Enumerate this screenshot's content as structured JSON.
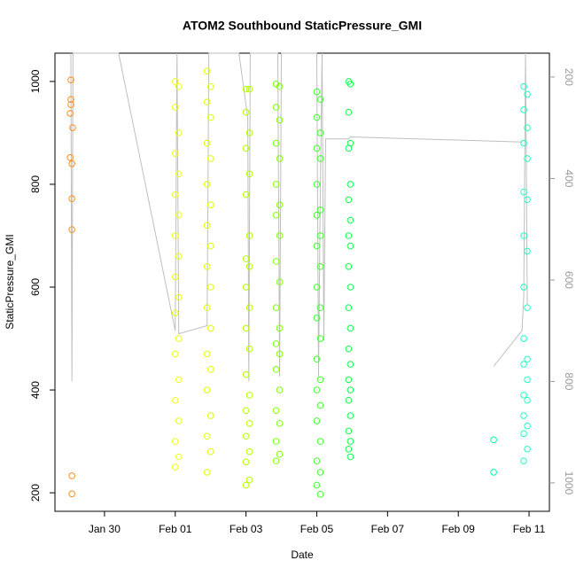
{
  "chart_data": {
    "type": "scatter",
    "title": "ATOM2 Southbound StaticPressure_GMI",
    "x_label": "Date",
    "y_label": "StaticPressure_GMI",
    "xlim": [
      28.6,
      42.575
    ],
    "ylim": [
      164,
      1055
    ],
    "y2lim": [
      1056,
      153
    ],
    "xticks": [
      {
        "value": 30,
        "label": "Jan 30"
      },
      {
        "value": 32,
        "label": "Feb 01"
      },
      {
        "value": 34,
        "label": "Feb 03"
      },
      {
        "value": 36,
        "label": "Feb 05"
      },
      {
        "value": 38,
        "label": "Feb 07"
      },
      {
        "value": 40,
        "label": "Feb 09"
      },
      {
        "value": 42,
        "label": "Feb 11"
      }
    ],
    "yticks": [
      200,
      400,
      600,
      800,
      1000
    ],
    "y2ticks": [
      200,
      400,
      600,
      800,
      1000
    ],
    "series": [
      {
        "color": "#bebebe",
        "type": "line",
        "axis": "y2",
        "x": [
          29.05,
          29.08,
          29.11,
          30.4,
          32.0,
          32.05,
          32.1,
          32.9,
          32.95,
          33.8,
          34.05,
          34.08,
          34.12,
          34.9,
          34.95,
          35.0,
          36.0,
          36.05,
          36.1,
          36.15,
          36.2,
          36.25,
          36.9,
          36.95,
          41.8,
          41.0,
          41.0,
          41.8,
          41.85,
          41.9,
          41.95
        ],
        "values": [
          153,
          800,
          153,
          153,
          700,
          153,
          706,
          690,
          153,
          153,
          280,
          800,
          153,
          153,
          790,
          153,
          153,
          790,
          420,
          153,
          720,
          322,
          322,
          318,
          328,
          null,
          770,
          700,
          633,
          153,
          650
        ]
      },
      {
        "color": "#ff8c1a",
        "x": [
          29.05,
          29.05,
          29.05,
          29.03,
          29.1,
          29.03,
          29.08,
          29.08,
          29.08,
          29.08,
          29.08
        ],
        "values": [
          1003,
          965,
          955,
          938,
          910,
          852,
          840,
          772,
          712,
          233,
          198
        ]
      },
      {
        "color": "#eeff1a",
        "x": [
          32.0,
          32.1,
          32.0,
          32.1,
          32.0,
          32.1,
          32.0,
          32.1,
          32.0,
          32.1,
          32.0,
          32.1,
          32.0,
          32.1,
          32.0,
          32.1,
          32.0,
          32.1,
          32.0,
          32.1,
          32.0
        ],
        "values": [
          1000,
          990,
          950,
          900,
          860,
          820,
          780,
          740,
          700,
          660,
          620,
          580,
          550,
          500,
          470,
          420,
          380,
          340,
          300,
          270,
          250
        ]
      },
      {
        "color": "#e0ff10",
        "x": [
          32.9,
          33.0,
          32.9,
          33.0,
          32.9,
          33.0,
          32.9,
          33.0,
          32.9,
          33.0,
          32.9,
          33.0,
          32.9,
          33.0,
          32.9,
          33.0,
          32.9,
          33.0,
          32.9,
          33.0,
          32.9
        ],
        "values": [
          1020,
          990,
          960,
          930,
          880,
          850,
          800,
          760,
          720,
          680,
          640,
          600,
          560,
          520,
          470,
          440,
          400,
          350,
          310,
          280,
          240
        ]
      },
      {
        "color": "#b0ff00",
        "x": [
          34.0,
          34.1,
          34.0,
          34.1,
          34.0,
          34.1,
          34.0,
          34.1,
          34.0,
          34.1,
          34.0,
          34.1,
          34.0,
          34.1,
          34.0,
          34.1,
          34.0,
          34.1,
          34.0,
          34.1,
          34.0,
          34.1,
          34.0
        ],
        "values": [
          985,
          985,
          940,
          900,
          870,
          820,
          780,
          700,
          655,
          640,
          600,
          560,
          520,
          480,
          430,
          390,
          360,
          335,
          310,
          280,
          260,
          225,
          215
        ]
      },
      {
        "color": "#80ff10",
        "x": [
          34.85,
          34.95,
          34.85,
          34.95,
          34.85,
          34.95,
          34.85,
          34.95,
          34.85,
          34.95,
          34.85,
          34.95,
          34.85,
          34.95,
          34.85,
          34.95,
          34.85,
          34.95,
          34.85,
          34.95,
          34.85,
          34.95,
          34.85
        ],
        "values": [
          995,
          990,
          950,
          925,
          880,
          850,
          800,
          760,
          740,
          700,
          650,
          610,
          560,
          520,
          490,
          470,
          440,
          400,
          360,
          335,
          300,
          275,
          262
        ]
      },
      {
        "color": "#40ff30",
        "x": [
          36.0,
          36.1,
          36.0,
          36.1,
          36.0,
          36.1,
          36.0,
          36.1,
          36.0,
          36.1,
          36.0,
          36.1,
          36.0,
          36.1,
          36.0,
          36.1,
          36.0,
          36.1,
          36.0,
          36.1,
          36.0,
          36.1,
          36.0,
          36.1,
          36.0,
          36.1
        ],
        "values": [
          980,
          965,
          930,
          900,
          870,
          850,
          800,
          750,
          740,
          700,
          680,
          640,
          600,
          560,
          540,
          500,
          460,
          420,
          400,
          370,
          340,
          300,
          262,
          240,
          215,
          197
        ]
      },
      {
        "color": "#10ff50",
        "x": [
          36.9,
          36.95,
          36.9,
          36.95,
          36.9,
          36.95,
          36.9,
          36.95,
          36.9,
          36.95,
          36.9,
          36.95,
          36.9,
          36.95,
          36.9,
          36.95,
          36.9,
          36.95,
          36.9,
          36.95,
          36.9,
          36.95,
          36.9,
          36.95
        ],
        "values": [
          1000,
          995,
          940,
          880,
          870,
          800,
          770,
          730,
          700,
          680,
          640,
          600,
          560,
          520,
          480,
          450,
          420,
          400,
          380,
          350,
          320,
          300,
          285,
          270
        ]
      },
      {
        "color": "#00ff99",
        "x": [
          41.0,
          41.0
        ],
        "values": [
          303,
          240
        ]
      },
      {
        "color": "#20ffc0",
        "x": [
          41.85,
          41.95,
          41.85,
          41.95,
          41.85,
          41.95,
          41.85,
          41.95,
          41.85,
          41.95,
          41.85,
          41.95,
          41.85,
          41.95,
          41.85,
          41.95,
          41.85,
          41.95,
          41.85,
          41.95,
          41.85,
          41.95,
          41.85
        ],
        "values": [
          990,
          975,
          945,
          910,
          880,
          850,
          785,
          770,
          700,
          670,
          600,
          560,
          500,
          460,
          450,
          420,
          390,
          380,
          350,
          330,
          315,
          285,
          262
        ]
      }
    ]
  }
}
